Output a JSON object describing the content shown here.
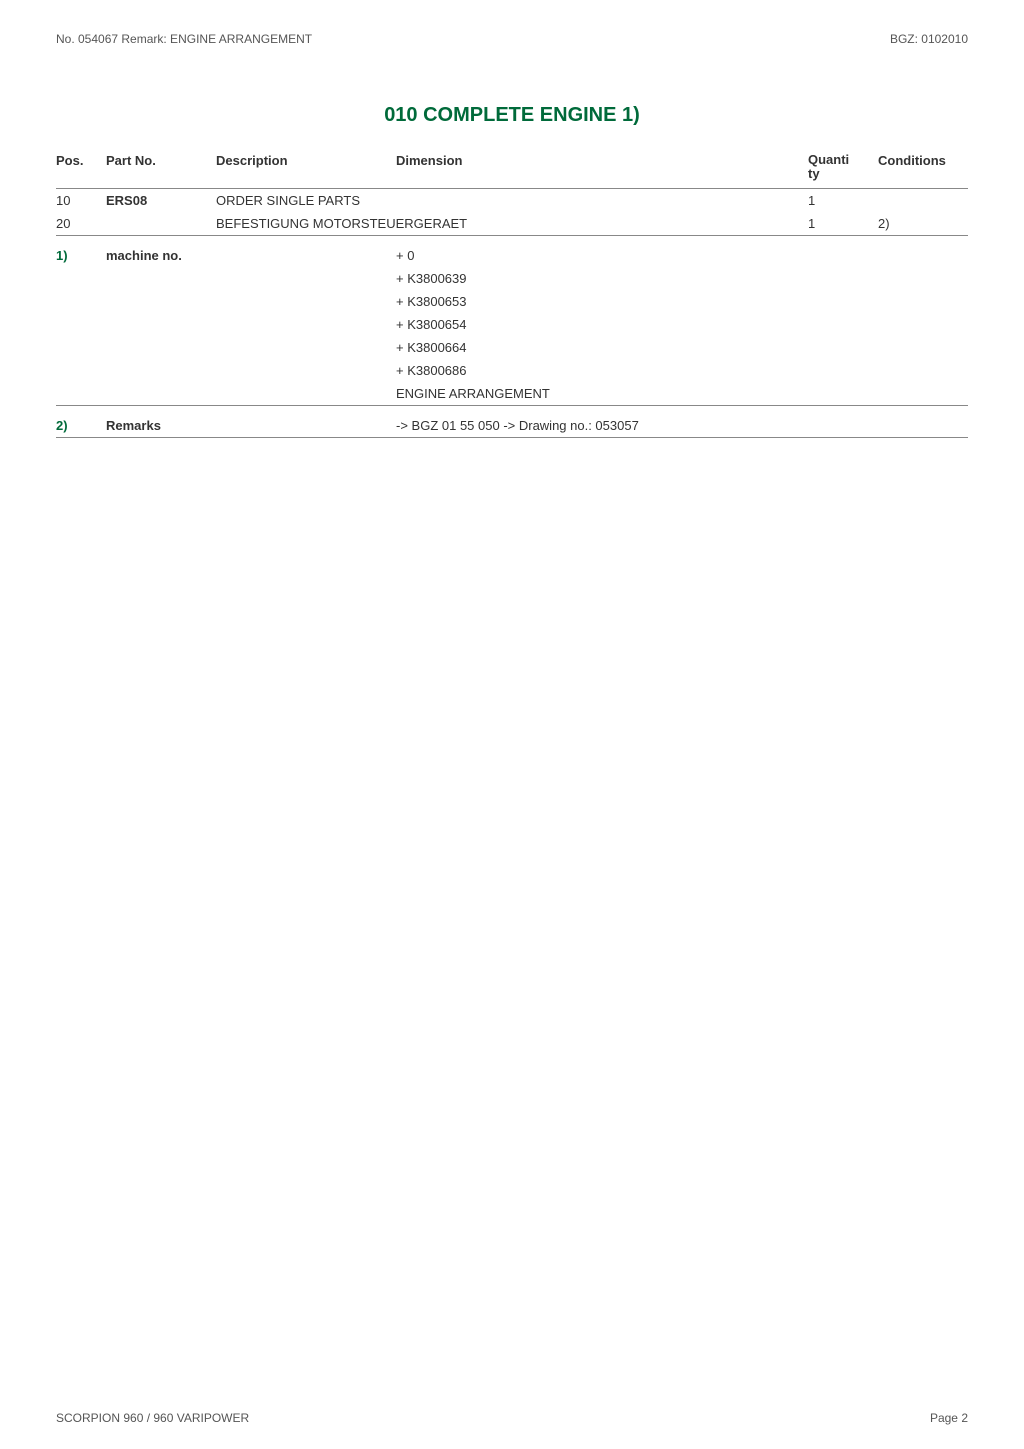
{
  "header": {
    "left": "No. 054067   Remark: ENGINE ARRANGEMENT",
    "right": "BGZ: 0102010"
  },
  "title": "010 COMPLETE ENGINE  1)",
  "columns": {
    "pos": "Pos.",
    "part": "Part No.",
    "desc": "Description",
    "dim": "Dimension",
    "qty1": "Quanti",
    "qty2": "ty",
    "cond": "Conditions"
  },
  "rows": [
    {
      "pos": "10",
      "part": "ERS08",
      "part_bold": true,
      "desc": "ORDER SINGLE PARTS",
      "qty": "1",
      "cond": ""
    },
    {
      "pos": "20",
      "part": "",
      "part_bold": false,
      "desc": "BEFESTIGUNG MOTORSTEUERGERAET",
      "qty": "1",
      "cond": "2)"
    }
  ],
  "notes": [
    {
      "pos": "1)",
      "label": "machine no.",
      "lines": [
        "+ 0",
        "+ K3800639",
        "+ K3800653",
        "+ K3800654",
        "+ K3800664",
        "+ K3800686",
        "ENGINE ARRANGEMENT"
      ]
    },
    {
      "pos": "2)",
      "label": "Remarks",
      "lines": [
        "-> BGZ 01 55 050 -> Drawing no.: 053057"
      ]
    }
  ],
  "footer": {
    "left": "SCORPION 960 / 960 VARIPOWER",
    "right": "Page 2"
  }
}
